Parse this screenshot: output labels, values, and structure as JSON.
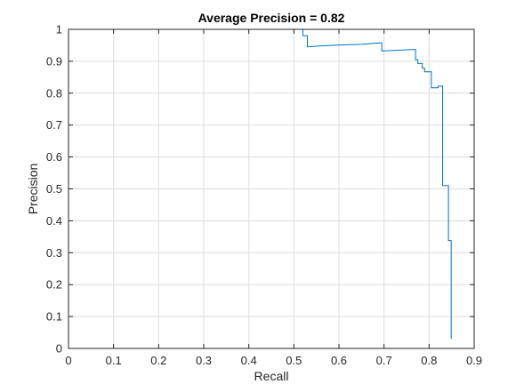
{
  "chart_data": {
    "type": "line",
    "title": "Average Precision = 0.82",
    "xlabel": "Recall",
    "ylabel": "Precision",
    "xlim": [
      0,
      0.9
    ],
    "ylim": [
      0,
      1
    ],
    "grid": true,
    "xticks": [
      "0",
      "0.1",
      "0.2",
      "0.3",
      "0.4",
      "0.5",
      "0.6",
      "0.7",
      "0.8",
      "0.9"
    ],
    "yticks": [
      "0",
      "0.1",
      "0.2",
      "0.3",
      "0.4",
      "0.5",
      "0.6",
      "0.7",
      "0.8",
      "0.9",
      "1"
    ],
    "series": [
      {
        "color": "#0072BD",
        "step": true,
        "x": [
          0,
          0.52,
          0.52,
          0.53,
          0.53,
          0.56,
          0.6,
          0.65,
          0.695,
          0.695,
          0.77,
          0.77,
          0.775,
          0.775,
          0.785,
          0.785,
          0.79,
          0.79,
          0.805,
          0.805,
          0.82,
          0.82,
          0.83,
          0.83,
          0.843,
          0.843,
          0.849,
          0.849
        ],
        "y": [
          1,
          1,
          0.98,
          0.98,
          0.945,
          0.948,
          0.951,
          0.953,
          0.958,
          0.932,
          0.937,
          0.905,
          0.905,
          0.893,
          0.893,
          0.878,
          0.878,
          0.867,
          0.867,
          0.817,
          0.817,
          0.822,
          0.822,
          0.51,
          0.51,
          0.338,
          0.338,
          0.03
        ]
      }
    ]
  }
}
